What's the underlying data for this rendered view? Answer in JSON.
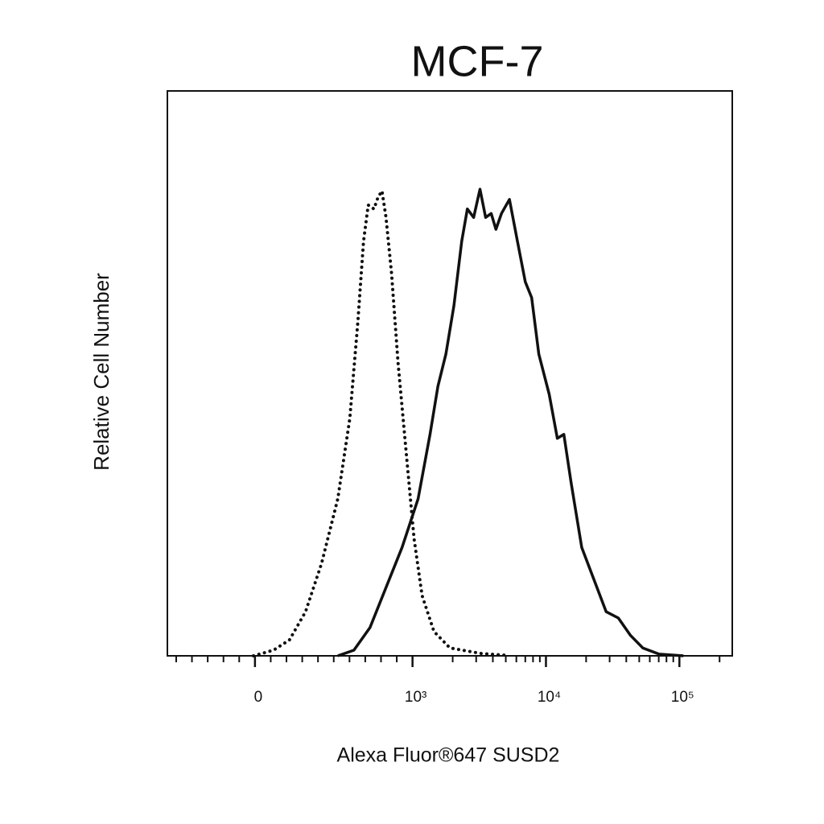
{
  "chart_data": {
    "type": "line",
    "title": "MCF-7",
    "x_label": "Alexa Fluor®647 SUSD2",
    "y_label": "Relative Cell Number",
    "xscale": "biexponential",
    "xlim": [
      -556,
      249000
    ],
    "ylim": [
      0,
      100
    ],
    "xticks": [
      0,
      {
        "value": 1000,
        "label": "10³"
      },
      {
        "value": 10000,
        "label": "10⁴"
      },
      {
        "value": 100000,
        "label": "10⁵"
      }
    ],
    "xminorticks": [
      -500,
      -400,
      -300,
      -200,
      -100,
      100,
      200,
      300,
      400,
      500,
      600,
      700,
      800,
      900,
      2000,
      3000,
      4000,
      5000,
      6000,
      7000,
      8000,
      9000,
      20000,
      30000,
      40000,
      50000,
      60000,
      70000,
      80000,
      90000,
      200000
    ],
    "series": [
      {
        "color": "#111111",
        "style": "dotted",
        "x": [
          -10,
          117,
          219,
          321,
          423,
          526,
          602,
          653,
          689,
          719,
          755,
          781,
          806,
          832,
          867,
          908,
          959,
          1028,
          1179,
          1448,
          1905,
          3296,
          4966
        ],
        "values": [
          0,
          1.0,
          2.8,
          7.8,
          16.4,
          27.8,
          42.0,
          59.1,
          73.4,
          79.8,
          79.1,
          81.2,
          82.3,
          77.6,
          67.7,
          52.0,
          36.3,
          20.7,
          10.7,
          4.3,
          1.4,
          0.4,
          0.1
        ]
      },
      {
        "color": "#111111",
        "style": "solid",
        "x": [
          526,
          628,
          730,
          832,
          934,
          1101,
          1352,
          1550,
          1778,
          2042,
          2339,
          2576,
          2873,
          3206,
          3530,
          3884,
          4218,
          4645,
          5326,
          6109,
          7004,
          7812,
          8837,
          10578,
          12170,
          13610,
          15450,
          18540,
          22890,
          28260,
          34880,
          43060,
          53200,
          70470,
          107200
        ],
        "values": [
          0,
          1.0,
          5.0,
          12.1,
          19.2,
          27.8,
          39.2,
          47.7,
          53.4,
          62.0,
          73.4,
          79.1,
          77.6,
          82.6,
          77.6,
          78.3,
          75.5,
          78.3,
          80.8,
          73.4,
          66.2,
          63.4,
          53.4,
          46.3,
          38.5,
          39.2,
          30.6,
          19.2,
          13.5,
          7.8,
          6.7,
          3.6,
          1.4,
          0.3,
          0
        ]
      }
    ]
  }
}
